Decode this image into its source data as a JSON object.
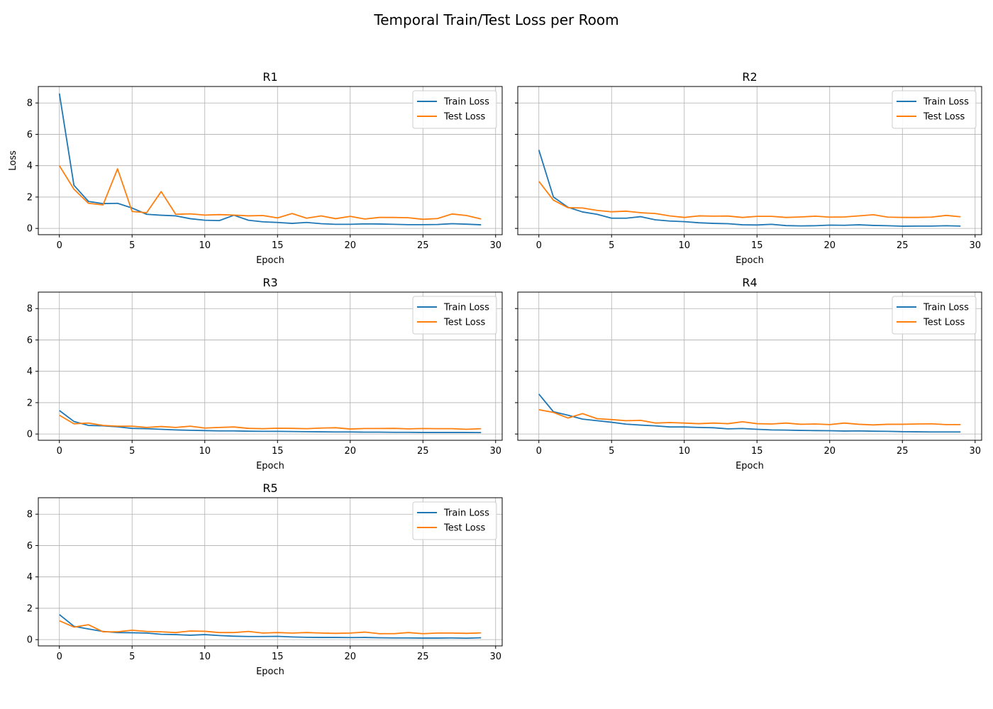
{
  "figure": {
    "title": "Temporal Train/Test Loss per Room"
  },
  "colors": {
    "train": "#1f77b4",
    "test": "#ff7f0e",
    "grid": "#b0b0b0",
    "axis": "#000000"
  },
  "chart_data": [
    {
      "type": "line",
      "title": "R1",
      "xlabel": "Epoch",
      "ylabel": "Loss",
      "xlim": [
        -1.45,
        30.45
      ],
      "ylim": [
        -0.4,
        9.05
      ],
      "xticks": [
        0,
        5,
        10,
        15,
        20,
        25,
        30
      ],
      "yticks": [
        0,
        2,
        4,
        6,
        8
      ],
      "grid": true,
      "legend": "upper right",
      "x": [
        0,
        1,
        2,
        3,
        4,
        5,
        6,
        7,
        8,
        9,
        10,
        11,
        12,
        13,
        14,
        15,
        16,
        17,
        18,
        19,
        20,
        21,
        22,
        23,
        24,
        25,
        26,
        27,
        28,
        29
      ],
      "series": [
        {
          "name": "Train Loss",
          "values": [
            8.6,
            2.75,
            1.72,
            1.58,
            1.6,
            1.3,
            0.9,
            0.84,
            0.8,
            0.62,
            0.52,
            0.5,
            0.84,
            0.52,
            0.42,
            0.38,
            0.32,
            0.38,
            0.3,
            0.26,
            0.26,
            0.29,
            0.28,
            0.26,
            0.24,
            0.24,
            0.25,
            0.3,
            0.27,
            0.23
          ]
        },
        {
          "name": "Test Loss",
          "values": [
            4.0,
            2.5,
            1.6,
            1.5,
            3.8,
            1.08,
            1.0,
            2.35,
            0.9,
            0.93,
            0.85,
            0.88,
            0.85,
            0.8,
            0.82,
            0.67,
            0.95,
            0.65,
            0.8,
            0.62,
            0.77,
            0.6,
            0.7,
            0.7,
            0.68,
            0.58,
            0.63,
            0.92,
            0.82,
            0.6
          ]
        }
      ]
    },
    {
      "type": "line",
      "title": "R2",
      "xlabel": "Epoch",
      "ylabel": "",
      "xlim": [
        -1.45,
        30.45
      ],
      "ylim": [
        -0.4,
        9.05
      ],
      "xticks": [
        0,
        5,
        10,
        15,
        20,
        25,
        30
      ],
      "yticks": [
        0,
        2,
        4,
        6,
        8
      ],
      "grid": true,
      "legend": "upper right",
      "x": [
        0,
        1,
        2,
        3,
        4,
        5,
        6,
        7,
        8,
        9,
        10,
        11,
        12,
        13,
        14,
        15,
        16,
        17,
        18,
        19,
        20,
        21,
        22,
        23,
        24,
        25,
        26,
        27,
        28,
        29
      ],
      "series": [
        {
          "name": "Train Loss",
          "values": [
            5.0,
            2.0,
            1.35,
            1.05,
            0.9,
            0.65,
            0.65,
            0.75,
            0.55,
            0.47,
            0.43,
            0.36,
            0.32,
            0.3,
            0.23,
            0.22,
            0.26,
            0.18,
            0.16,
            0.17,
            0.21,
            0.2,
            0.23,
            0.19,
            0.17,
            0.14,
            0.15,
            0.15,
            0.17,
            0.15
          ]
        },
        {
          "name": "Test Loss",
          "values": [
            3.0,
            1.8,
            1.32,
            1.3,
            1.15,
            1.06,
            1.1,
            1.0,
            0.95,
            0.8,
            0.7,
            0.8,
            0.78,
            0.79,
            0.7,
            0.77,
            0.77,
            0.7,
            0.73,
            0.78,
            0.72,
            0.73,
            0.8,
            0.87,
            0.72,
            0.7,
            0.7,
            0.72,
            0.83,
            0.74
          ]
        }
      ]
    },
    {
      "type": "line",
      "title": "R3",
      "xlabel": "Epoch",
      "ylabel": "",
      "xlim": [
        -1.45,
        30.45
      ],
      "ylim": [
        -0.4,
        9.05
      ],
      "xticks": [
        0,
        5,
        10,
        15,
        20,
        25,
        30
      ],
      "yticks": [
        0,
        2,
        4,
        6,
        8
      ],
      "grid": true,
      "legend": "upper right",
      "x": [
        0,
        1,
        2,
        3,
        4,
        5,
        6,
        7,
        8,
        9,
        10,
        11,
        12,
        13,
        14,
        15,
        16,
        17,
        18,
        19,
        20,
        21,
        22,
        23,
        24,
        25,
        26,
        27,
        28,
        29
      ],
      "series": [
        {
          "name": "Train Loss",
          "values": [
            1.5,
            0.8,
            0.55,
            0.52,
            0.46,
            0.36,
            0.34,
            0.3,
            0.26,
            0.24,
            0.22,
            0.2,
            0.2,
            0.18,
            0.17,
            0.17,
            0.16,
            0.15,
            0.14,
            0.13,
            0.13,
            0.12,
            0.12,
            0.11,
            0.11,
            0.1,
            0.1,
            0.1,
            0.1,
            0.09
          ]
        },
        {
          "name": "Test Loss",
          "values": [
            1.2,
            0.65,
            0.7,
            0.55,
            0.5,
            0.5,
            0.42,
            0.48,
            0.42,
            0.5,
            0.38,
            0.42,
            0.45,
            0.36,
            0.34,
            0.37,
            0.36,
            0.34,
            0.38,
            0.4,
            0.32,
            0.35,
            0.35,
            0.36,
            0.33,
            0.35,
            0.34,
            0.34,
            0.3,
            0.34
          ]
        }
      ]
    },
    {
      "type": "line",
      "title": "R4",
      "xlabel": "Epoch",
      "ylabel": "",
      "xlim": [
        -1.45,
        30.45
      ],
      "ylim": [
        -0.4,
        9.05
      ],
      "xticks": [
        0,
        5,
        10,
        15,
        20,
        25,
        30
      ],
      "yticks": [
        0,
        2,
        4,
        6,
        8
      ],
      "grid": true,
      "legend": "upper right",
      "x": [
        0,
        1,
        2,
        3,
        4,
        5,
        6,
        7,
        8,
        9,
        10,
        11,
        12,
        13,
        14,
        15,
        16,
        17,
        18,
        19,
        20,
        21,
        22,
        23,
        24,
        25,
        26,
        27,
        28,
        29
      ],
      "series": [
        {
          "name": "Train Loss",
          "values": [
            2.55,
            1.42,
            1.2,
            0.95,
            0.85,
            0.75,
            0.63,
            0.57,
            0.52,
            0.45,
            0.45,
            0.42,
            0.4,
            0.33,
            0.35,
            0.3,
            0.26,
            0.25,
            0.23,
            0.22,
            0.21,
            0.19,
            0.2,
            0.18,
            0.17,
            0.15,
            0.14,
            0.13,
            0.13,
            0.13
          ]
        },
        {
          "name": "Test Loss",
          "values": [
            1.55,
            1.38,
            1.02,
            1.3,
            0.98,
            0.92,
            0.85,
            0.87,
            0.7,
            0.73,
            0.7,
            0.66,
            0.7,
            0.66,
            0.78,
            0.66,
            0.64,
            0.7,
            0.62,
            0.64,
            0.6,
            0.7,
            0.62,
            0.58,
            0.62,
            0.62,
            0.64,
            0.65,
            0.6,
            0.6
          ]
        }
      ]
    },
    {
      "type": "line",
      "title": "R5",
      "xlabel": "Epoch",
      "ylabel": "",
      "xlim": [
        -1.45,
        30.45
      ],
      "ylim": [
        -0.4,
        9.05
      ],
      "xticks": [
        0,
        5,
        10,
        15,
        20,
        25,
        30
      ],
      "yticks": [
        0,
        2,
        4,
        6,
        8
      ],
      "grid": true,
      "legend": "upper right",
      "x": [
        0,
        1,
        2,
        3,
        4,
        5,
        6,
        7,
        8,
        9,
        10,
        11,
        12,
        13,
        14,
        15,
        16,
        17,
        18,
        19,
        20,
        21,
        22,
        23,
        24,
        25,
        26,
        27,
        28,
        29
      ],
      "series": [
        {
          "name": "Train Loss",
          "values": [
            1.6,
            0.85,
            0.68,
            0.52,
            0.45,
            0.44,
            0.42,
            0.34,
            0.32,
            0.28,
            0.32,
            0.26,
            0.22,
            0.2,
            0.2,
            0.21,
            0.17,
            0.15,
            0.14,
            0.14,
            0.13,
            0.14,
            0.12,
            0.11,
            0.11,
            0.1,
            0.1,
            0.11,
            0.09,
            0.12
          ]
        },
        {
          "name": "Test Loss",
          "values": [
            1.2,
            0.8,
            0.95,
            0.5,
            0.5,
            0.6,
            0.52,
            0.5,
            0.45,
            0.55,
            0.53,
            0.45,
            0.45,
            0.52,
            0.42,
            0.45,
            0.42,
            0.45,
            0.42,
            0.4,
            0.42,
            0.48,
            0.38,
            0.38,
            0.45,
            0.38,
            0.42,
            0.42,
            0.4,
            0.43
          ]
        }
      ]
    }
  ]
}
